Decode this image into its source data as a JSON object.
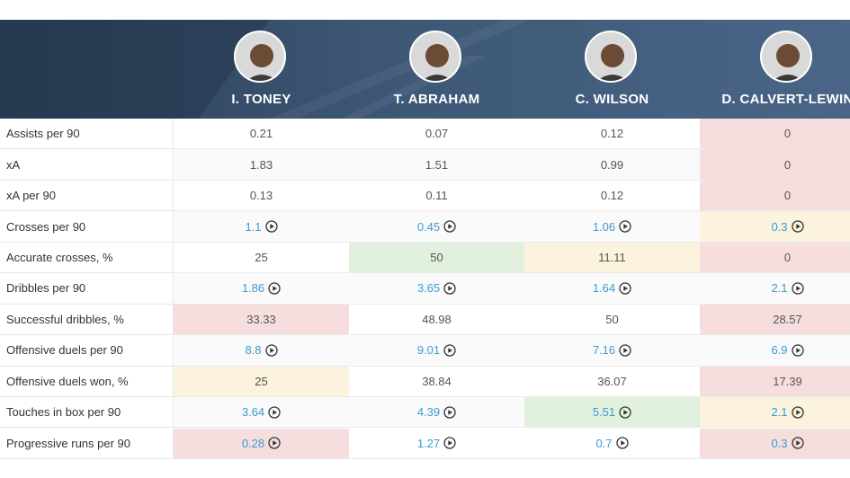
{
  "table": {
    "columns": [
      "I. TONEY",
      "T. ABRAHAM",
      "C. WILSON",
      "D. CALVERT-LEWIN"
    ],
    "fill_colors": {
      "red": "#f6dede",
      "green": "#e1f1dd",
      "yellow": "#fbf3dd"
    },
    "rows": [
      {
        "label": "Assists per 90",
        "values": [
          "0.21",
          "0.07",
          "0.12",
          "0"
        ],
        "fills": [
          null,
          null,
          null,
          "red"
        ]
      },
      {
        "label": "xA",
        "values": [
          "1.83",
          "1.51",
          "0.99",
          "0"
        ],
        "fills": [
          null,
          null,
          null,
          "red"
        ]
      },
      {
        "label": "xA per 90",
        "values": [
          "0.13",
          "0.11",
          "0.12",
          "0"
        ],
        "fills": [
          null,
          null,
          null,
          "red"
        ]
      },
      {
        "label": "Crosses per 90",
        "values": [
          "1.1",
          "0.45",
          "1.06",
          "0.3"
        ],
        "fills": [
          null,
          null,
          null,
          "yellow"
        ],
        "video": true
      },
      {
        "label": "Accurate crosses, %",
        "values": [
          "25",
          "50",
          "11.11",
          "0"
        ],
        "fills": [
          null,
          "green",
          "yellow",
          "red"
        ]
      },
      {
        "label": "Dribbles per 90",
        "values": [
          "1.86",
          "3.65",
          "1.64",
          "2.1"
        ],
        "fills": [
          null,
          null,
          null,
          null
        ],
        "video": true
      },
      {
        "label": "Successful dribbles, %",
        "values": [
          "33.33",
          "48.98",
          "50",
          "28.57"
        ],
        "fills": [
          "red",
          null,
          null,
          "red"
        ]
      },
      {
        "label": "Offensive duels per 90",
        "values": [
          "8.8",
          "9.01",
          "7.16",
          "6.9"
        ],
        "fills": [
          null,
          null,
          null,
          null
        ],
        "video": true
      },
      {
        "label": "Offensive duels won, %",
        "values": [
          "25",
          "38.84",
          "36.07",
          "17.39"
        ],
        "fills": [
          "yellow",
          null,
          null,
          "red"
        ]
      },
      {
        "label": "Touches in box per 90",
        "values": [
          "3.64",
          "4.39",
          "5.51",
          "2.1"
        ],
        "fills": [
          null,
          null,
          "green",
          "yellow"
        ],
        "video": true
      },
      {
        "label": "Progressive runs per 90",
        "values": [
          "0.28",
          "1.27",
          "0.7",
          "0.3"
        ],
        "fills": [
          "red",
          null,
          null,
          "red"
        ],
        "video": true
      }
    ]
  }
}
